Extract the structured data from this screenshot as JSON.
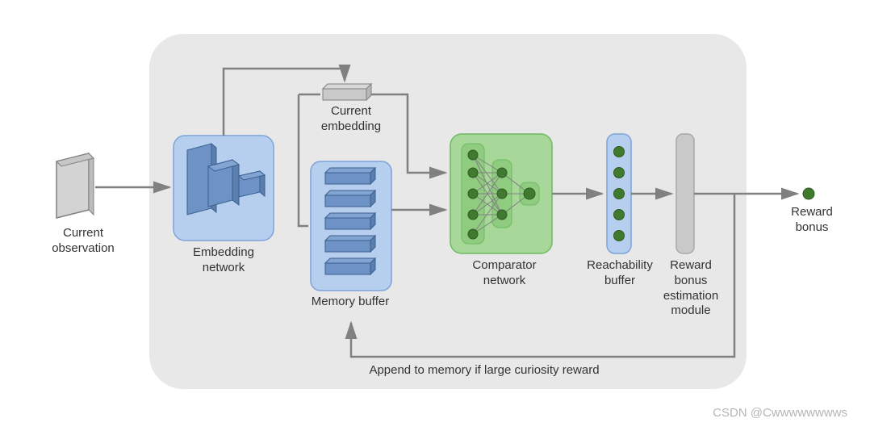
{
  "diagram": {
    "type": "flowchart",
    "background_color": "#ffffff",
    "container": {
      "fill": "#e8e8e8",
      "stroke": "none",
      "rx": 40
    },
    "arrow_color": "#808080",
    "arrow_width": 2.5,
    "label_fontsize": 15,
    "label_color": "#333333",
    "nodes": {
      "current_observation": {
        "label": "Current\nobservation",
        "fill": "#d3d3d3",
        "stroke": "#808080"
      },
      "embedding_network": {
        "label": "Embedding\nnetwork",
        "box_fill": "#b6cfee",
        "box_stroke": "#7da3d9",
        "shape_fill": "#5f84b8",
        "shape_stroke": "#3c5f8f"
      },
      "current_embedding": {
        "label": "Current\nembedding",
        "fill": "#c9c9c9",
        "stroke": "#808080"
      },
      "memory_buffer": {
        "label": "Memory buffer",
        "box_fill": "#b6cfee",
        "box_stroke": "#7da3d9",
        "bar_fill": "#5f84b8",
        "bar_stroke": "#3c5f8f"
      },
      "comparator_network": {
        "label": "Comparator\nnetwork",
        "box_fill": "#a7d89a",
        "box_stroke": "#6fb860",
        "inner_fill": "#8fcc7f",
        "node_fill": "#3f7a2f",
        "edge_color": "#808080"
      },
      "reachability_buffer": {
        "label": "Reachability\nbuffer",
        "box_fill": "#b6cfee",
        "box_stroke": "#7da3d9",
        "dot_fill": "#3f7a2f"
      },
      "reward_module": {
        "label": "Reward\nbonus\nestimation\nmodule",
        "fill": "#c9c9c9",
        "stroke": "#a8a8a8"
      },
      "reward_bonus": {
        "label": "Reward\nbonus",
        "dot_fill": "#3f7a2f"
      }
    },
    "feedback_label": "Append to memory if large curiosity reward",
    "watermark": "CSDN @Cwwwwwwwws"
  }
}
